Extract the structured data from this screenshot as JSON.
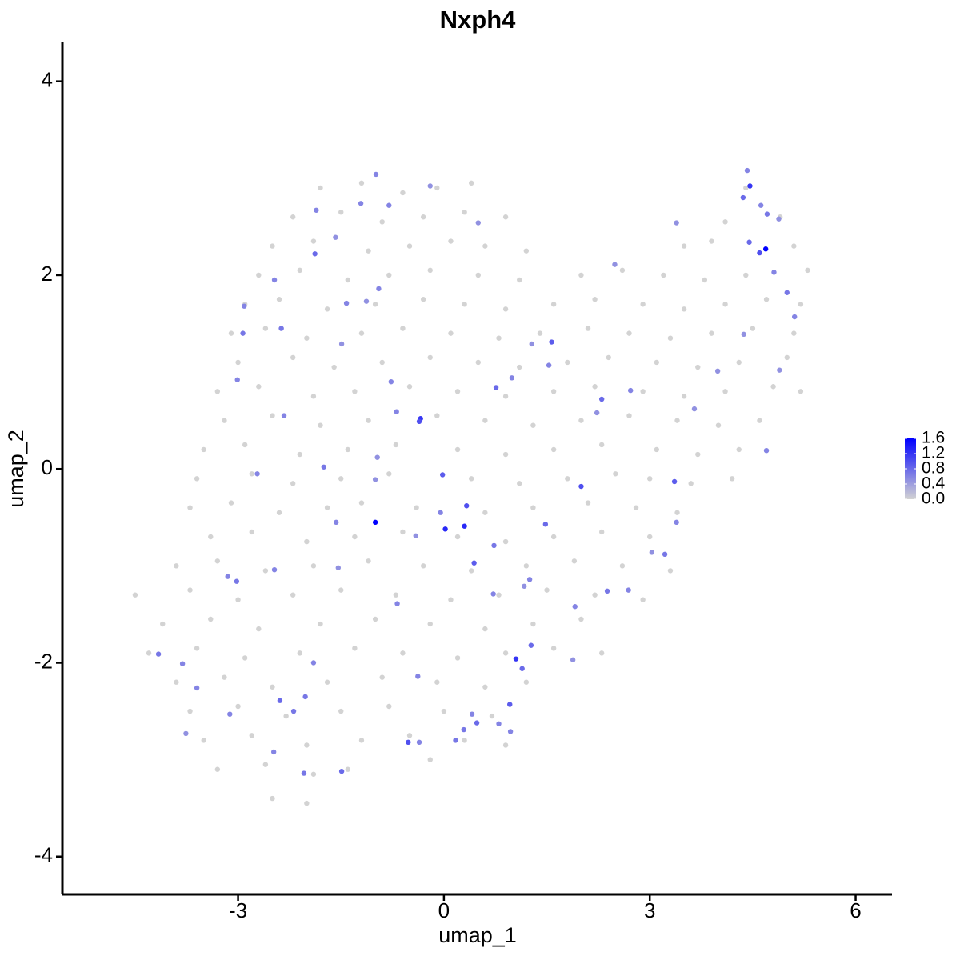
{
  "chart_data": {
    "type": "scatter",
    "title": "Nxph4",
    "x_label": "umap_1",
    "y_label": "umap_2",
    "xlim": [
      -5.56,
      6.53
    ],
    "ylim": [
      -4.39,
      4.41
    ],
    "xticks": [
      -3,
      0,
      3,
      6
    ],
    "yticks": [
      -4,
      -2,
      0,
      2,
      4
    ],
    "colorbar": {
      "low_color": "#d3d3d3",
      "high_color": "#0000ff",
      "lim": [
        0,
        1.6
      ],
      "ticks": [
        {
          "value": 0,
          "label": "0.0"
        },
        0.4,
        0.8,
        1.2,
        1.6
      ]
    },
    "series": [
      {
        "color": "#d3d3d3",
        "x": [
          -1.8,
          -1.2,
          -0.6,
          -0.1,
          0.4,
          4.4,
          -2.2,
          -1.5,
          -0.9,
          -0.3,
          0.3,
          0.9,
          4.1,
          4.9,
          -2.5,
          -1.9,
          -1.1,
          -0.5,
          0.1,
          0.6,
          1.2,
          3.5,
          3.9,
          5.1,
          -2.7,
          -2.1,
          -1.4,
          -0.8,
          -0.2,
          0.5,
          1.1,
          2.0,
          2.6,
          3.2,
          3.8,
          4.4,
          5.3,
          -2.9,
          -2.4,
          -1.7,
          -1.0,
          -0.3,
          0.3,
          0.9,
          1.6,
          2.2,
          2.9,
          3.5,
          4.1,
          4.7,
          5.2,
          -3.1,
          -2.6,
          -2.0,
          -1.2,
          -0.6,
          0.1,
          0.8,
          1.4,
          2.1,
          2.7,
          3.3,
          3.9,
          4.5,
          5.1,
          -3.0,
          -2.2,
          -1.6,
          -0.9,
          -0.2,
          0.5,
          1.1,
          1.8,
          2.4,
          3.1,
          3.7,
          4.3,
          5.0,
          -3.3,
          -2.7,
          -1.9,
          -1.3,
          -0.5,
          0.2,
          0.9,
          1.6,
          2.2,
          2.9,
          3.5,
          4.1,
          4.8,
          5.2,
          -3.2,
          -2.5,
          -1.8,
          -1.1,
          -0.1,
          0.6,
          1.3,
          2.0,
          2.7,
          3.4,
          4.0,
          4.6,
          -3.5,
          -2.9,
          -2.1,
          -1.4,
          -0.7,
          0.2,
          0.9,
          1.6,
          2.3,
          3.1,
          3.7,
          4.3,
          -3.6,
          -2.8,
          -2.2,
          -1.5,
          -0.8,
          0.4,
          1.1,
          1.8,
          2.5,
          3.0,
          3.6,
          4.2,
          -3.7,
          -3.1,
          -2.4,
          -1.7,
          -1.2,
          -0.4,
          0.6,
          1.3,
          2.1,
          2.8,
          3.4,
          -3.4,
          -2.8,
          -2.0,
          -1.3,
          -0.6,
          0.2,
          0.9,
          1.6,
          2.3,
          3.0,
          -3.9,
          -3.3,
          -2.6,
          -1.9,
          -1.1,
          -0.3,
          0.4,
          1.2,
          1.9,
          2.6,
          3.3,
          -4.5,
          -3.7,
          -3.0,
          -2.2,
          -1.5,
          -0.7,
          0.1,
          0.8,
          1.5,
          2.2,
          2.9,
          -4.1,
          -3.4,
          -2.7,
          -1.8,
          -1.0,
          -0.2,
          0.6,
          1.3,
          2.0,
          -4.3,
          -3.6,
          -2.9,
          -2.1,
          -1.3,
          -0.6,
          0.2,
          0.9,
          1.6,
          2.3,
          -3.9,
          -3.2,
          -2.5,
          -1.7,
          -0.9,
          -0.1,
          0.6,
          1.2,
          -3.7,
          -3.0,
          -2.3,
          -1.5,
          -0.8,
          0.0,
          0.7,
          -3.5,
          -2.8,
          -2.0,
          -1.2,
          -0.5,
          0.3,
          0.9,
          -3.3,
          -2.6,
          -1.9,
          -1.4,
          -0.2,
          -2.5,
          -2.0
        ],
        "values": [
          2.9,
          2.95,
          2.85,
          2.9,
          2.95,
          2.9,
          2.6,
          2.65,
          2.55,
          2.6,
          2.65,
          2.6,
          2.55,
          2.6,
          2.3,
          2.35,
          2.25,
          2.3,
          2.35,
          2.3,
          2.25,
          2.3,
          2.35,
          2.3,
          2.0,
          2.05,
          1.95,
          2.0,
          2.05,
          2.0,
          1.95,
          2.0,
          2.05,
          2.0,
          1.95,
          2.0,
          2.05,
          1.7,
          1.75,
          1.65,
          1.7,
          1.75,
          1.7,
          1.65,
          1.7,
          1.75,
          1.7,
          1.65,
          1.7,
          1.75,
          1.7,
          1.4,
          1.45,
          1.35,
          1.4,
          1.45,
          1.4,
          1.35,
          1.4,
          1.45,
          1.4,
          1.35,
          1.4,
          1.45,
          1.4,
          1.1,
          1.15,
          1.05,
          1.1,
          1.15,
          1.1,
          1.05,
          1.1,
          1.15,
          1.1,
          1.05,
          1.1,
          1.15,
          0.8,
          0.85,
          0.75,
          0.8,
          0.85,
          0.8,
          0.75,
          0.8,
          0.85,
          0.8,
          0.75,
          0.8,
          0.85,
          0.8,
          0.5,
          0.55,
          0.45,
          0.5,
          0.55,
          0.5,
          0.45,
          0.5,
          0.55,
          0.5,
          0.45,
          0.5,
          0.2,
          0.25,
          0.15,
          0.2,
          0.25,
          0.2,
          0.15,
          0.2,
          0.25,
          0.2,
          0.15,
          0.2,
          -0.1,
          -0.05,
          -0.15,
          -0.1,
          -0.05,
          -0.1,
          -0.15,
          -0.1,
          -0.05,
          -0.1,
          -0.15,
          -0.1,
          -0.4,
          -0.35,
          -0.45,
          -0.4,
          -0.35,
          -0.4,
          -0.45,
          -0.4,
          -0.35,
          -0.4,
          -0.45,
          -0.7,
          -0.65,
          -0.75,
          -0.7,
          -0.65,
          -0.7,
          -0.75,
          -0.7,
          -0.65,
          -0.7,
          -1.0,
          -0.95,
          -1.05,
          -1.0,
          -0.95,
          -1.0,
          -1.05,
          -1.0,
          -0.95,
          -1.0,
          -1.05,
          -1.3,
          -1.25,
          -1.35,
          -1.3,
          -1.25,
          -1.3,
          -1.35,
          -1.3,
          -1.25,
          -1.3,
          -1.35,
          -1.6,
          -1.55,
          -1.65,
          -1.6,
          -1.55,
          -1.6,
          -1.65,
          -1.6,
          -1.55,
          -1.9,
          -1.85,
          -1.95,
          -1.9,
          -1.85,
          -1.9,
          -1.95,
          -1.9,
          -1.85,
          -1.9,
          -2.2,
          -2.15,
          -2.25,
          -2.2,
          -2.15,
          -2.2,
          -2.25,
          -2.2,
          -2.5,
          -2.45,
          -2.55,
          -2.5,
          -2.45,
          -2.5,
          -2.55,
          -2.8,
          -2.75,
          -2.85,
          -2.8,
          -2.75,
          -2.8,
          -2.85,
          -3.1,
          -3.05,
          -3.15,
          -3.1,
          -3.0,
          -3.4,
          -3.45
        ]
      },
      {
        "x": [
          4.42,
          4.46,
          4.69,
          4.6,
          4.45,
          4.62,
          4.71,
          4.88,
          4.36,
          4.81,
          5.0,
          5.11,
          4.89,
          4.7,
          4.37,
          3.99,
          3.65,
          3.39,
          3.36,
          3.39,
          3.22,
          3.03,
          2.72,
          2.3,
          2.23,
          2.0,
          2.49,
          1.57,
          1.53,
          2.38,
          2.69,
          1.91,
          1.88,
          1.48,
          1.27,
          1.05,
          1.14,
          0.96,
          0.97,
          0.8,
          0.29,
          0.48,
          0.41,
          0.17,
          -0.36,
          -0.52,
          -0.38,
          -1.0,
          0.02,
          0.3,
          0.33,
          -0.02,
          -0.34,
          -0.36,
          -0.69,
          0.44,
          0.72,
          0.73,
          0.76,
          0.99,
          1.25,
          1.17,
          -0.68,
          -1.0,
          -0.97,
          -1.57,
          -1.54,
          -1.75,
          -2.33,
          -2.47,
          -3.02,
          -3.15,
          -2.39,
          -2.02,
          -1.9,
          -2.19,
          -2.48,
          -2.04,
          -1.49,
          -3.12,
          -3.6,
          -3.76,
          -4.16,
          -3.81,
          -2.72,
          -3.01,
          -2.91,
          -2.93,
          -2.47,
          -2.37,
          -1.88,
          -1.86,
          -1.58,
          -1.42,
          -0.99,
          -1.21,
          -0.8,
          -0.2,
          -0.95,
          -1.13,
          -1.49,
          -0.77,
          0.5,
          1.28,
          -0.05,
          -0.41
        ],
        "values": [
          3.08,
          2.92,
          2.27,
          2.23,
          2.34,
          2.72,
          2.63,
          2.58,
          2.8,
          2.03,
          1.82,
          1.57,
          1.02,
          0.19,
          1.39,
          1.01,
          0.62,
          2.54,
          -0.13,
          -0.55,
          -0.88,
          -0.86,
          0.81,
          0.72,
          0.58,
          -0.18,
          2.11,
          1.31,
          1.07,
          -1.26,
          -1.25,
          -1.42,
          -1.97,
          -0.57,
          -1.82,
          -1.96,
          -2.06,
          -2.43,
          -2.71,
          -2.63,
          -2.69,
          -2.62,
          -2.53,
          -2.8,
          -2.82,
          -2.82,
          -2.14,
          -0.55,
          -0.62,
          -0.59,
          -0.38,
          -0.06,
          0.52,
          0.49,
          0.59,
          -0.97,
          -1.29,
          -0.79,
          0.84,
          0.94,
          -1.14,
          -1.21,
          -1.39,
          -0.11,
          0.12,
          -0.55,
          -1.02,
          0.02,
          0.55,
          -1.04,
          -1.16,
          -1.11,
          -2.39,
          -2.35,
          -2.0,
          -2.5,
          -2.92,
          -3.14,
          -3.12,
          -2.53,
          -2.26,
          -2.73,
          -1.91,
          -2.01,
          -0.05,
          0.92,
          1.68,
          1.4,
          1.95,
          1.45,
          2.22,
          2.67,
          2.39,
          1.71,
          3.04,
          2.74,
          2.72,
          2.92,
          1.86,
          1.73,
          1.29,
          0.9,
          2.54,
          1.29,
          -0.45,
          -0.69
        ],
        "expression": [
          0.6,
          1.2,
          1.6,
          1.0,
          0.8,
          0.6,
          0.7,
          0.5,
          0.8,
          0.6,
          0.7,
          0.6,
          0.5,
          0.6,
          0.5,
          0.5,
          0.5,
          0.5,
          0.9,
          0.6,
          0.7,
          0.5,
          0.6,
          0.8,
          0.5,
          1.0,
          0.5,
          0.9,
          0.6,
          0.7,
          0.6,
          0.6,
          0.5,
          0.8,
          0.8,
          1.2,
          0.8,
          0.9,
          0.6,
          0.6,
          0.7,
          0.8,
          0.6,
          0.7,
          0.6,
          1.0,
          0.6,
          1.6,
          1.3,
          1.3,
          1.0,
          0.9,
          1.2,
          1.0,
          0.6,
          0.9,
          0.6,
          0.7,
          0.8,
          0.6,
          0.6,
          0.5,
          0.6,
          0.5,
          0.5,
          0.6,
          0.5,
          0.7,
          0.6,
          0.6,
          0.7,
          0.6,
          0.8,
          0.7,
          0.6,
          0.7,
          0.6,
          0.7,
          0.8,
          0.6,
          0.6,
          0.5,
          0.7,
          0.6,
          0.6,
          0.6,
          0.6,
          0.7,
          0.6,
          0.7,
          0.8,
          0.6,
          0.5,
          0.6,
          0.6,
          0.6,
          0.6,
          0.5,
          0.6,
          0.5,
          0.5,
          0.6,
          0.5,
          0.5,
          0.6,
          0.5
        ]
      }
    ]
  }
}
